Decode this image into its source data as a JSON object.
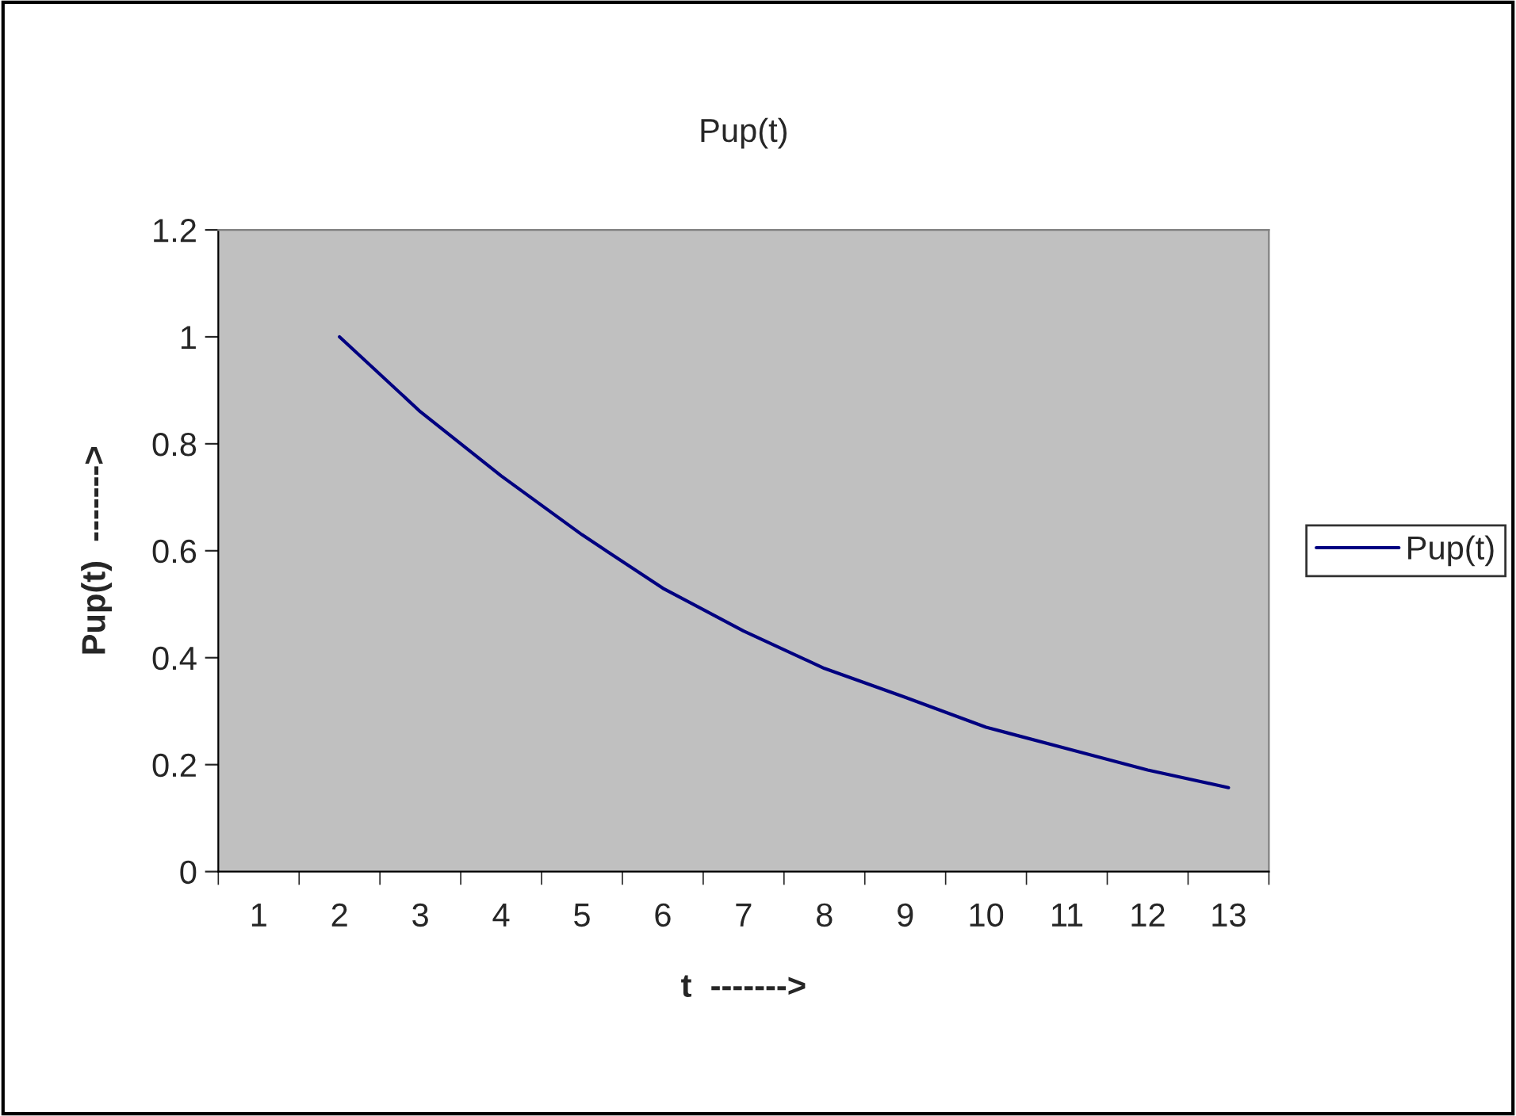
{
  "chart_data": {
    "type": "line",
    "title": "Pup(t)",
    "xlabel": "t  ------->",
    "ylabel": "Pup(t)  ------->",
    "categories": [
      "1",
      "2",
      "3",
      "4",
      "5",
      "6",
      "7",
      "8",
      "9",
      "10",
      "11",
      "12",
      "13"
    ],
    "series": [
      {
        "name": "Pup(t)",
        "color": "#000080",
        "values": [
          null,
          1.0,
          0.86,
          0.74,
          0.63,
          0.53,
          0.45,
          0.38,
          0.326,
          0.27,
          0.23,
          0.19,
          0.157
        ]
      }
    ],
    "ylim": [
      0,
      1.2
    ],
    "yticks": [
      0,
      0.2,
      0.4,
      0.6,
      0.8,
      1,
      1.2
    ],
    "grid": false,
    "legend": "right",
    "marker": "none",
    "line_style": "solid"
  }
}
